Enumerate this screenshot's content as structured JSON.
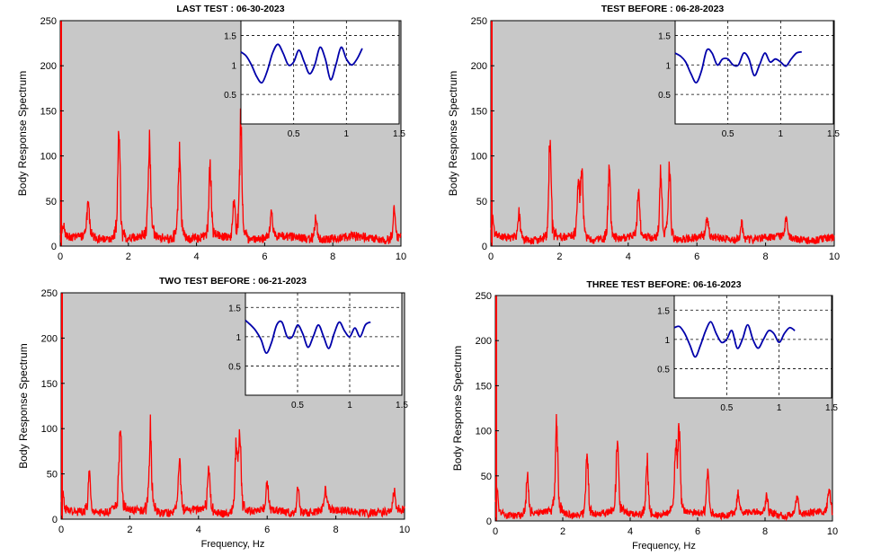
{
  "colors": {
    "plot_background": "#c8c8c8",
    "inset_background": "#ffffff",
    "spectrum_line": "#ff0000",
    "inset_line": "#0000aa"
  },
  "chart_data": [
    {
      "type": "line",
      "title": "LAST TEST : 06-30-2023",
      "ylabel": "Body Response Spectrum",
      "xlabel": "",
      "xlim": [
        0,
        10
      ],
      "ylim": [
        0,
        250
      ],
      "xticks": [
        "0",
        "2",
        "4",
        "6",
        "8",
        "10"
      ],
      "yticks": [
        "0",
        "50",
        "100",
        "150",
        "200",
        "250"
      ],
      "grid": false,
      "baseline_noise": 10,
      "peaks": [
        {
          "x": 0.1,
          "y": 12
        },
        {
          "x": 0.82,
          "y": 38
        },
        {
          "x": 1.72,
          "y": 118
        },
        {
          "x": 2.62,
          "y": 100
        },
        {
          "x": 3.5,
          "y": 98
        },
        {
          "x": 4.4,
          "y": 72
        },
        {
          "x": 5.1,
          "y": 40
        },
        {
          "x": 5.3,
          "y": 122
        },
        {
          "x": 6.2,
          "y": 25
        },
        {
          "x": 7.5,
          "y": 22
        },
        {
          "x": 9.8,
          "y": 33
        }
      ],
      "inset": {
        "type": "line",
        "xlim": [
          0,
          1.5
        ],
        "ylim": [
          0,
          1.75
        ],
        "xticks": [
          "0.5",
          "1",
          "1.5"
        ],
        "yticks": [
          "0.5",
          "1",
          "1.5"
        ],
        "grid": true,
        "x": [
          0.0,
          0.05,
          0.1,
          0.15,
          0.2,
          0.25,
          0.3,
          0.35,
          0.4,
          0.45,
          0.5,
          0.55,
          0.6,
          0.65,
          0.7,
          0.75,
          0.8,
          0.85,
          0.9,
          0.95,
          1.0,
          1.05,
          1.1,
          1.15
        ],
        "y": [
          1.22,
          1.15,
          1.0,
          0.8,
          0.7,
          0.9,
          1.2,
          1.35,
          1.2,
          1.0,
          1.05,
          1.25,
          1.05,
          0.85,
          1.0,
          1.3,
          1.1,
          0.75,
          1.0,
          1.3,
          1.1,
          1.0,
          1.1,
          1.28
        ]
      }
    },
    {
      "type": "line",
      "title": "TEST BEFORE : 06-28-2023",
      "ylabel": "Body Response Spectrum",
      "xlabel": "",
      "xlim": [
        0,
        10
      ],
      "ylim": [
        0,
        250
      ],
      "xticks": [
        "0",
        "2",
        "4",
        "6",
        "8",
        "10"
      ],
      "yticks": [
        "0",
        "50",
        "100",
        "150",
        "200",
        "250"
      ],
      "grid": false,
      "baseline_noise": 9,
      "peaks": [
        {
          "x": 0.05,
          "y": 20
        },
        {
          "x": 0.82,
          "y": 27
        },
        {
          "x": 1.72,
          "y": 100
        },
        {
          "x": 2.55,
          "y": 55
        },
        {
          "x": 2.65,
          "y": 67
        },
        {
          "x": 3.45,
          "y": 73
        },
        {
          "x": 4.3,
          "y": 48
        },
        {
          "x": 4.95,
          "y": 70
        },
        {
          "x": 5.2,
          "y": 78
        },
        {
          "x": 6.3,
          "y": 18
        },
        {
          "x": 7.3,
          "y": 20
        },
        {
          "x": 8.6,
          "y": 20
        }
      ],
      "inset": {
        "type": "line",
        "xlim": [
          0,
          1.5
        ],
        "ylim": [
          0,
          1.75
        ],
        "xticks": [
          "0.5",
          "1",
          "1.5"
        ],
        "yticks": [
          "0.5",
          "1",
          "1.5"
        ],
        "grid": true,
        "x": [
          0.0,
          0.05,
          0.1,
          0.15,
          0.2,
          0.25,
          0.3,
          0.35,
          0.4,
          0.45,
          0.5,
          0.55,
          0.6,
          0.65,
          0.7,
          0.75,
          0.8,
          0.85,
          0.9,
          0.95,
          1.0,
          1.05,
          1.1,
          1.15,
          1.2
        ],
        "y": [
          1.2,
          1.15,
          1.05,
          0.85,
          0.7,
          0.9,
          1.25,
          1.2,
          1.0,
          1.1,
          1.1,
          1.0,
          1.0,
          1.2,
          1.1,
          0.82,
          1.0,
          1.2,
          1.05,
          1.1,
          1.05,
          0.98,
          1.1,
          1.2,
          1.22
        ]
      }
    },
    {
      "type": "line",
      "title": "TWO TEST BEFORE : 06-21-2023",
      "ylabel": "Body Response Spectrum",
      "xlabel": "Frequency, Hz",
      "xlim": [
        0,
        10
      ],
      "ylim": [
        0,
        250
      ],
      "xticks": [
        "0",
        "2",
        "4",
        "6",
        "8",
        "10"
      ],
      "yticks": [
        "0",
        "50",
        "100",
        "150",
        "200",
        "250"
      ],
      "grid": false,
      "baseline_noise": 9,
      "peaks": [
        {
          "x": 0.05,
          "y": 18
        },
        {
          "x": 0.82,
          "y": 44
        },
        {
          "x": 1.72,
          "y": 92
        },
        {
          "x": 2.6,
          "y": 88
        },
        {
          "x": 3.45,
          "y": 55
        },
        {
          "x": 4.3,
          "y": 46
        },
        {
          "x": 5.1,
          "y": 65
        },
        {
          "x": 5.2,
          "y": 80
        },
        {
          "x": 6.0,
          "y": 30
        },
        {
          "x": 6.9,
          "y": 25
        },
        {
          "x": 7.7,
          "y": 22
        },
        {
          "x": 9.7,
          "y": 22
        }
      ],
      "inset": {
        "type": "line",
        "xlim": [
          0,
          1.5
        ],
        "ylim": [
          0,
          1.75
        ],
        "xticks": [
          "0.5",
          "1",
          "1.5"
        ],
        "yticks": [
          "0.5",
          "1",
          "1.5"
        ],
        "grid": true,
        "x": [
          0.0,
          0.05,
          0.1,
          0.15,
          0.2,
          0.25,
          0.3,
          0.35,
          0.4,
          0.45,
          0.5,
          0.55,
          0.6,
          0.65,
          0.7,
          0.75,
          0.8,
          0.85,
          0.9,
          0.95,
          1.0,
          1.05,
          1.1,
          1.15,
          1.2
        ],
        "y": [
          1.28,
          1.2,
          1.1,
          0.95,
          0.72,
          0.9,
          1.2,
          1.25,
          1.0,
          1.0,
          1.2,
          1.05,
          0.82,
          1.0,
          1.2,
          1.0,
          0.8,
          1.05,
          1.25,
          1.1,
          1.0,
          1.15,
          1.0,
          1.2,
          1.25
        ]
      }
    },
    {
      "type": "line",
      "title": "THREE TEST BEFORE:   06-16-2023",
      "ylabel": "Body Response Spectrum",
      "xlabel": "Frequency, Hz",
      "xlim": [
        0,
        10
      ],
      "ylim": [
        0,
        250
      ],
      "xticks": [
        "0",
        "2",
        "4",
        "6",
        "8",
        "10"
      ],
      "yticks": [
        "0",
        "50",
        "100",
        "150",
        "200",
        "250"
      ],
      "grid": false,
      "baseline_noise": 8,
      "peaks": [
        {
          "x": 0.05,
          "y": 25
        },
        {
          "x": 0.95,
          "y": 38
        },
        {
          "x": 1.82,
          "y": 96
        },
        {
          "x": 2.72,
          "y": 68
        },
        {
          "x": 3.62,
          "y": 78
        },
        {
          "x": 4.5,
          "y": 58
        },
        {
          "x": 5.35,
          "y": 63
        },
        {
          "x": 5.45,
          "y": 90
        },
        {
          "x": 6.3,
          "y": 48
        },
        {
          "x": 7.2,
          "y": 22
        },
        {
          "x": 8.05,
          "y": 20
        },
        {
          "x": 8.95,
          "y": 22
        },
        {
          "x": 9.9,
          "y": 28
        }
      ],
      "inset": {
        "type": "line",
        "xlim": [
          0,
          1.5
        ],
        "ylim": [
          0,
          1.75
        ],
        "xticks": [
          "0.5",
          "1",
          "1.5"
        ],
        "yticks": [
          "0.5",
          "1",
          "1.5"
        ],
        "grid": true,
        "x": [
          0.0,
          0.05,
          0.1,
          0.15,
          0.2,
          0.25,
          0.3,
          0.35,
          0.4,
          0.45,
          0.5,
          0.55,
          0.6,
          0.65,
          0.7,
          0.75,
          0.8,
          0.85,
          0.9,
          0.95,
          1.0,
          1.05,
          1.1,
          1.15
        ],
        "y": [
          1.2,
          1.22,
          1.1,
          0.9,
          0.7,
          0.9,
          1.15,
          1.3,
          1.1,
          0.95,
          1.0,
          1.15,
          0.85,
          1.0,
          1.25,
          1.0,
          0.85,
          1.0,
          1.15,
          1.1,
          0.95,
          1.1,
          1.2,
          1.15
        ]
      }
    }
  ]
}
